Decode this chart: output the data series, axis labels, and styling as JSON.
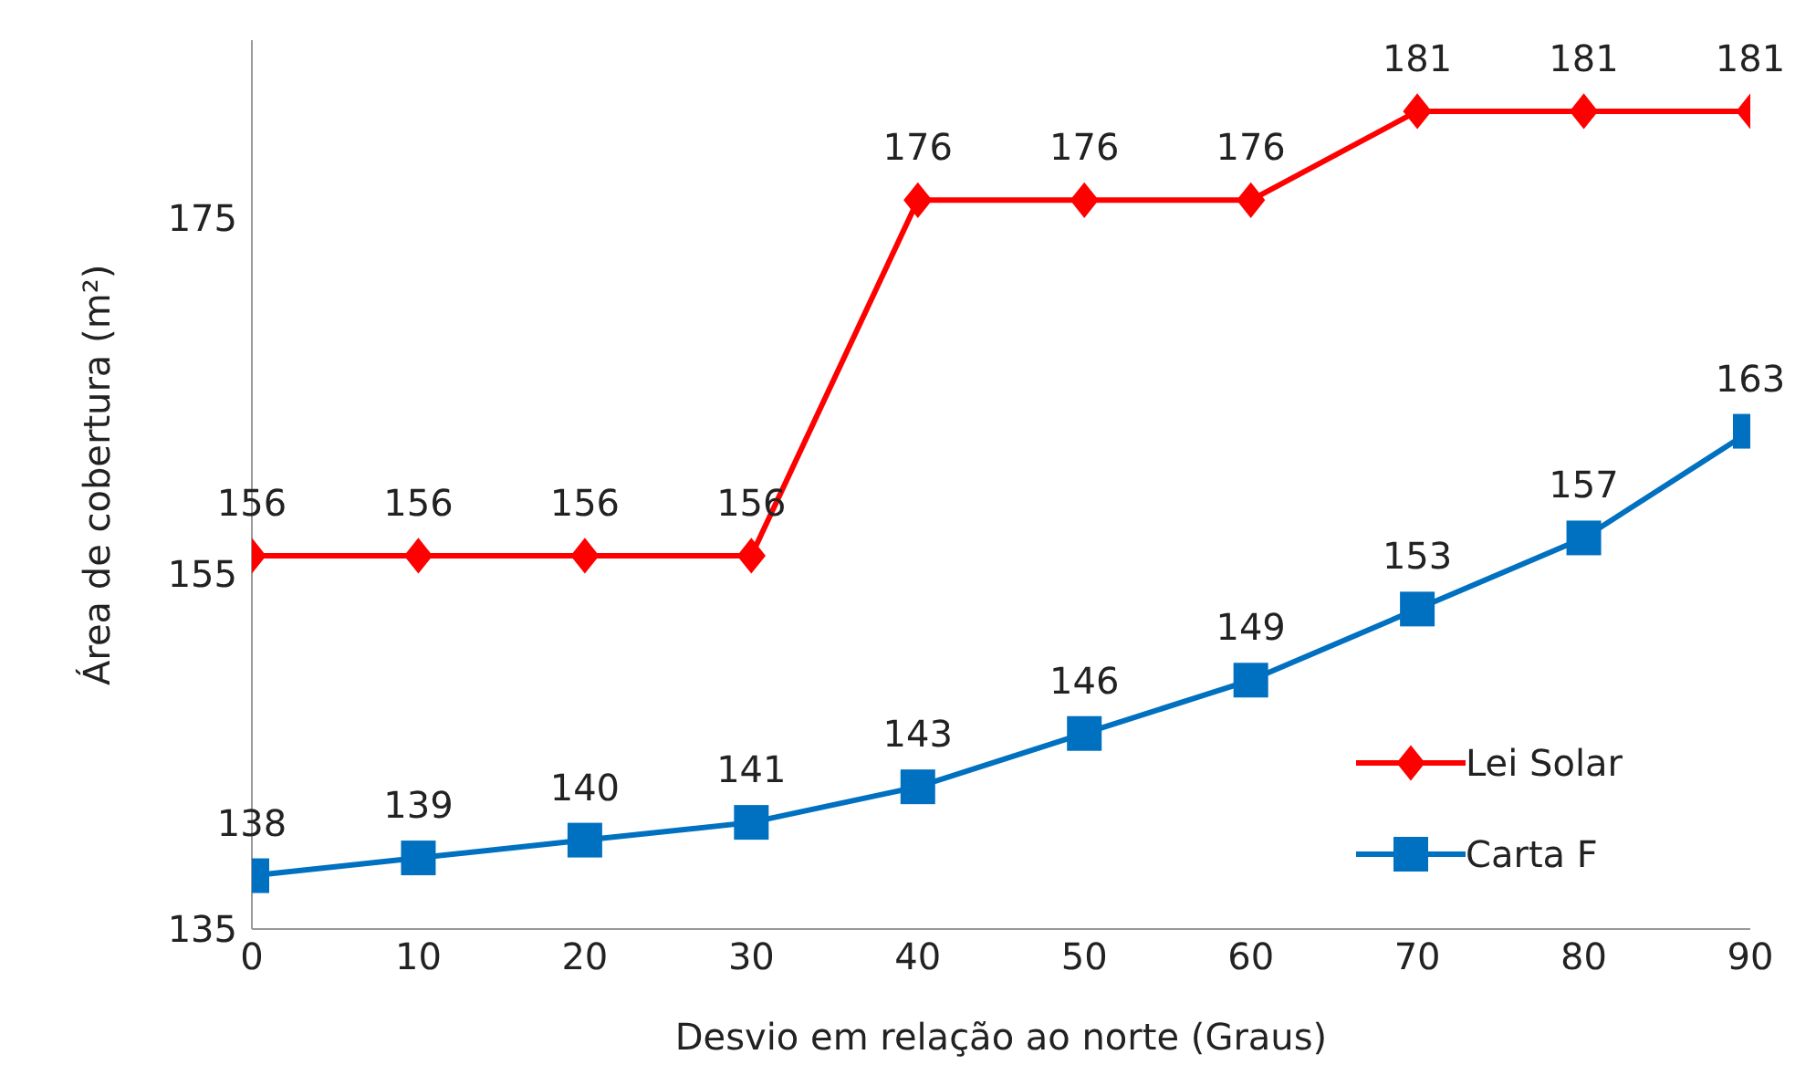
{
  "chart_data": {
    "type": "line",
    "xlabel": "Desvio em relação ao norte (Graus)",
    "ylabel": "Área de cobertura (m²)",
    "x": [
      0,
      10,
      20,
      30,
      40,
      50,
      60,
      70,
      80,
      90
    ],
    "series": [
      {
        "name": "Lei Solar",
        "color": "#ff0000",
        "marker": "diamond",
        "values": [
          156,
          156,
          156,
          156,
          176,
          176,
          176,
          181,
          181,
          181
        ]
      },
      {
        "name": "Carta F",
        "color": "#0070c0",
        "marker": "square",
        "values": [
          138,
          139,
          140,
          141,
          143,
          146,
          149,
          153,
          157,
          163
        ]
      }
    ],
    "xlim": [
      0,
      90
    ],
    "xticks": [
      0,
      10,
      20,
      30,
      40,
      50,
      60,
      70,
      80,
      90
    ],
    "ylim": [
      135,
      185
    ],
    "yticks": [
      135,
      155,
      175
    ],
    "data_labels": true,
    "grid": false,
    "legend": "bottom right",
    "line_style": "solid"
  }
}
